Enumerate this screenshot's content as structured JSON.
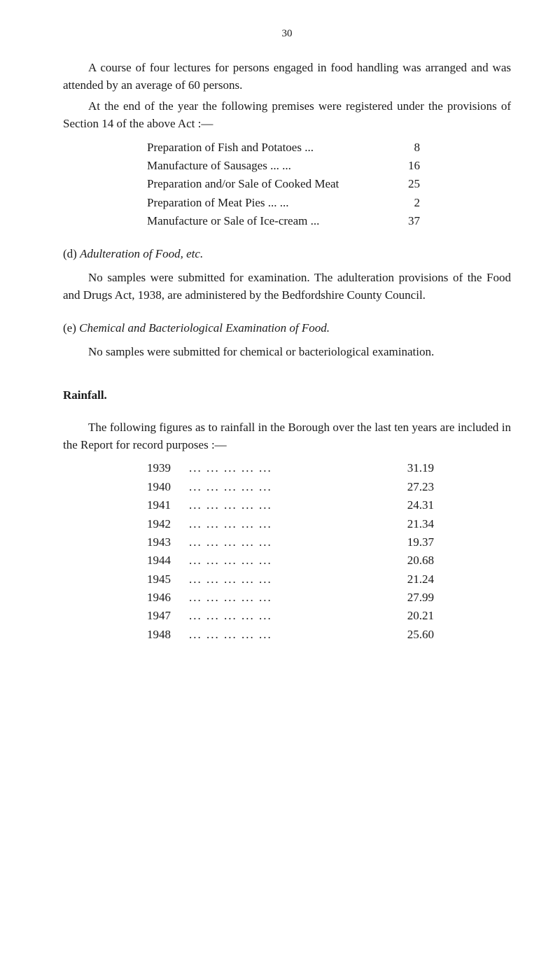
{
  "pageNumber": "30",
  "intro": {
    "p1": "A course of four lectures for persons engaged in food handling was arranged and was attended by an average of 60 persons.",
    "p2": "At the end of the year the following premises were registered under the provisions of Section 14 of the above Act :—"
  },
  "premises": [
    {
      "label": "Preparation of Fish and Potatoes    ...",
      "value": "8"
    },
    {
      "label": "Manufacture of Sausages        ...     ...",
      "value": "16"
    },
    {
      "label": "Preparation and/or Sale of Cooked Meat",
      "value": "25"
    },
    {
      "label": "Preparation of Meat Pies        ...     ...",
      "value": "2"
    },
    {
      "label": "Manufacture or Sale of Ice-cream   ...",
      "value": "37"
    }
  ],
  "sectionD": {
    "headingPrefix": "(d)  ",
    "headingItalic": "Adulteration of Food, etc.",
    "body": "No samples were submitted for examination.  The adulteration provisions of the Food and Drugs Act, 1938, are administered by the Bedfordshire County Council."
  },
  "sectionE": {
    "headingPrefix": "(e)  ",
    "headingItalic": "Chemical and Bacteriological Examination of Food.",
    "body": "No samples were submitted for chemical or bacteriological examination."
  },
  "rainfall": {
    "heading": "Rainfall.",
    "intro": "The following figures as to rainfall in the Borough over the last ten years are included in the Report for record purposes :—",
    "rows": [
      {
        "year": "1939",
        "value": "31.19"
      },
      {
        "year": "1940",
        "value": "27.23"
      },
      {
        "year": "1941",
        "value": "24.31"
      },
      {
        "year": "1942",
        "value": "21.34"
      },
      {
        "year": "1943",
        "value": "19.37"
      },
      {
        "year": "1944",
        "value": "20.68"
      },
      {
        "year": "1945",
        "value": "21.24"
      },
      {
        "year": "1946",
        "value": "27.99"
      },
      {
        "year": "1947",
        "value": "20.21"
      },
      {
        "year": "1948",
        "value": "25.60"
      }
    ],
    "dots": "...     ...     ...     ...     ..."
  }
}
